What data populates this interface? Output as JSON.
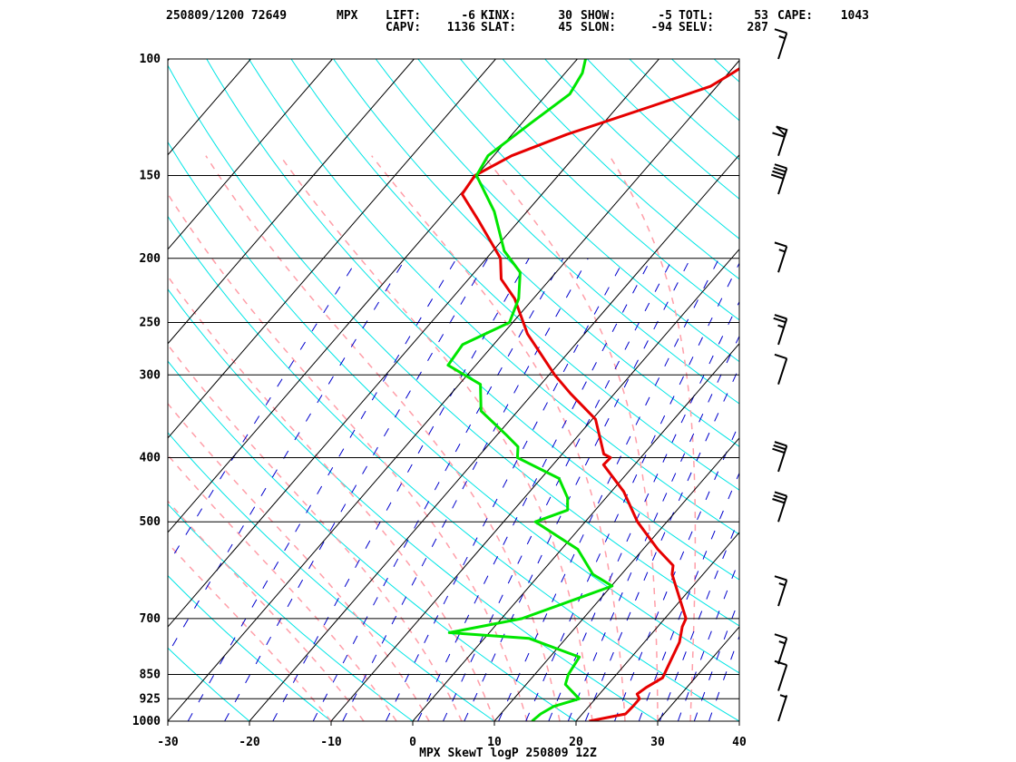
{
  "header": {
    "date_station": "250809/1200 72649",
    "site": "MPX",
    "row1": [
      {
        "label": "LIFT:",
        "value": "-6"
      },
      {
        "label": "KINX:",
        "value": "30"
      },
      {
        "label": "SHOW:",
        "value": "-5"
      },
      {
        "label": "TOTL:",
        "value": "53"
      },
      {
        "label": "CAPE:",
        "value": "1043"
      }
    ],
    "row2": [
      {
        "label": "CAPV:",
        "value": "1136"
      },
      {
        "label": "SLAT:",
        "value": "45"
      },
      {
        "label": "SLON:",
        "value": "-94"
      },
      {
        "label": "SELV:",
        "value": "287"
      }
    ]
  },
  "chart_data": {
    "type": "line",
    "title": "MPX SkewT logP 250809 12Z",
    "x_axis": {
      "ticks": [
        -30,
        -20,
        -10,
        0,
        10,
        20,
        30,
        40
      ],
      "range": [
        -30,
        40
      ]
    },
    "y_axis": {
      "ticks": [
        100,
        150,
        200,
        250,
        300,
        400,
        500,
        700,
        850,
        925,
        1000
      ],
      "range": [
        100,
        1000
      ],
      "scale": "log"
    },
    "colors": {
      "temperature": "#e60000",
      "dewpoint": "#00e600",
      "isotherm": "#000000",
      "dry_adiabat": "#00e5e5",
      "moist_adiabat": "#ff9ea8",
      "mixing_ratio": "#0000cc",
      "isobar": "#000000"
    },
    "series": [
      {
        "key": "temperature",
        "points": [
          [
            1000,
            21.6
          ],
          [
            975,
            25.3
          ],
          [
            950,
            25.4
          ],
          [
            925,
            25.4
          ],
          [
            910,
            24.6
          ],
          [
            890,
            25.0
          ],
          [
            860,
            26.0
          ],
          [
            800,
            25.0
          ],
          [
            760,
            24.3
          ],
          [
            720,
            23.0
          ],
          [
            700,
            22.6
          ],
          [
            600,
            16.2
          ],
          [
            582,
            15.4
          ],
          [
            550,
            11.8
          ],
          [
            500,
            6.4
          ],
          [
            450,
            1.5
          ],
          [
            410,
            -3.8
          ],
          [
            400,
            -3.7
          ],
          [
            395,
            -4.9
          ],
          [
            380,
            -6.4
          ],
          [
            350,
            -9.6
          ],
          [
            320,
            -15.4
          ],
          [
            300,
            -19.3
          ],
          [
            260,
            -27.0
          ],
          [
            230,
            -32.3
          ],
          [
            215,
            -36.0
          ],
          [
            200,
            -38.3
          ],
          [
            175,
            -45.1
          ],
          [
            160,
            -49.8
          ],
          [
            150,
            -50.2
          ],
          [
            140,
            -47.8
          ],
          [
            130,
            -43.3
          ],
          [
            118,
            -36.0
          ],
          [
            110,
            -30.8
          ],
          [
            105,
            -29.5
          ],
          [
            100,
            -28.3
          ]
        ]
      },
      {
        "key": "dewpoint",
        "points": [
          [
            1000,
            14.6
          ],
          [
            975,
            14.9
          ],
          [
            950,
            15.7
          ],
          [
            925,
            18.0
          ],
          [
            880,
            14.8
          ],
          [
            850,
            14.1
          ],
          [
            800,
            13.6
          ],
          [
            750,
            5.5
          ],
          [
            735,
            -4.9
          ],
          [
            700,
            2.5
          ],
          [
            625,
            10.1
          ],
          [
            600,
            6.5
          ],
          [
            550,
            2.0
          ],
          [
            500,
            -6.1
          ],
          [
            480,
            -3.4
          ],
          [
            460,
            -4.7
          ],
          [
            430,
            -7.8
          ],
          [
            400,
            -15.1
          ],
          [
            385,
            -16.2
          ],
          [
            370,
            -18.8
          ],
          [
            340,
            -24.5
          ],
          [
            310,
            -27.4
          ],
          [
            290,
            -33.4
          ],
          [
            270,
            -33.8
          ],
          [
            250,
            -30.4
          ],
          [
            230,
            -31.8
          ],
          [
            210,
            -34.4
          ],
          [
            195,
            -38.6
          ],
          [
            170,
            -44.0
          ],
          [
            150,
            -50.0
          ],
          [
            140,
            -50.7
          ],
          [
            125,
            -48.9
          ],
          [
            113,
            -47.2
          ],
          [
            105,
            -47.9
          ],
          [
            100,
            -49.0
          ]
        ]
      }
    ],
    "wind_barbs": [
      {
        "p": 100,
        "spd": 15
      },
      {
        "p": 140,
        "spd": 60
      },
      {
        "p": 160,
        "spd": 40
      },
      {
        "p": 210,
        "spd": 15
      },
      {
        "p": 270,
        "spd": 25
      },
      {
        "p": 310,
        "spd": 10
      },
      {
        "p": 420,
        "spd": 30
      },
      {
        "p": 500,
        "spd": 30
      },
      {
        "p": 670,
        "spd": 15
      },
      {
        "p": 820,
        "spd": 15
      },
      {
        "p": 900,
        "spd": 10
      },
      {
        "p": 1000,
        "spd": 5
      }
    ]
  }
}
